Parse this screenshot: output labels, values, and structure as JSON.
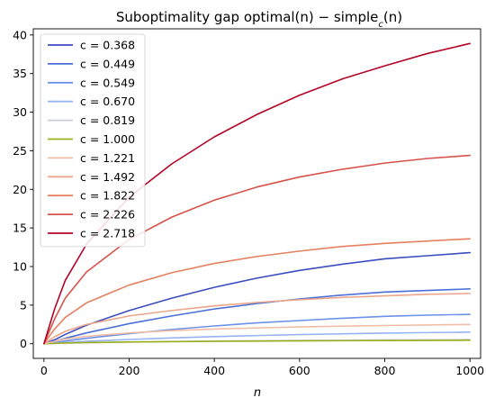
{
  "chart_data": {
    "type": "line",
    "title": "Suboptimality gap optimal(n) − simple_c(n)",
    "xlabel": "n",
    "ylabel": "",
    "xlim": [
      -25,
      1025
    ],
    "ylim": [
      -1.9,
      40.8
    ],
    "xticks": [
      0,
      200,
      400,
      600,
      800,
      1000
    ],
    "yticks": [
      0,
      5,
      10,
      15,
      20,
      25,
      30,
      35,
      40
    ],
    "x": [
      0,
      25,
      50,
      100,
      200,
      300,
      400,
      500,
      600,
      700,
      800,
      900,
      1000
    ],
    "grid": false,
    "legend_position": "top-left",
    "series": [
      {
        "name": "c = 0.368",
        "color": "#3b4cc0",
        "values": [
          0,
          0.5,
          1.2,
          2.4,
          4.3,
          5.9,
          7.3,
          8.5,
          9.5,
          10.3,
          11.0,
          11.4,
          11.8
        ]
      },
      {
        "name": "c = 0.449",
        "color": "#4a6fd8",
        "values": [
          0,
          0.3,
          0.7,
          1.4,
          2.6,
          3.6,
          4.5,
          5.2,
          5.8,
          6.3,
          6.7,
          6.9,
          7.1
        ]
      },
      {
        "name": "c = 0.549",
        "color": "#6b91e8",
        "values": [
          0,
          0.15,
          0.35,
          0.7,
          1.3,
          1.85,
          2.3,
          2.7,
          3.0,
          3.3,
          3.55,
          3.7,
          3.8
        ]
      },
      {
        "name": "c = 0.670",
        "color": "#96b3f3",
        "values": [
          0,
          0.07,
          0.17,
          0.32,
          0.55,
          0.75,
          0.92,
          1.06,
          1.18,
          1.28,
          1.37,
          1.44,
          1.5
        ]
      },
      {
        "name": "c = 0.819",
        "color": "#c9cfdc",
        "values": [
          0,
          0.03,
          0.07,
          0.13,
          0.22,
          0.29,
          0.35,
          0.4,
          0.44,
          0.47,
          0.5,
          0.52,
          0.54
        ]
      },
      {
        "name": "c = 1.000",
        "color": "#9ab01e",
        "values": [
          0,
          0.04,
          0.09,
          0.15,
          0.22,
          0.27,
          0.31,
          0.34,
          0.37,
          0.39,
          0.41,
          0.43,
          0.45
        ]
      },
      {
        "name": "c = 1.221",
        "color": "#f0bea6",
        "values": [
          0,
          0.3,
          0.6,
          0.95,
          1.4,
          1.7,
          1.9,
          2.05,
          2.18,
          2.28,
          2.36,
          2.43,
          2.5
        ]
      },
      {
        "name": "c = 1.492",
        "color": "#eba58a",
        "values": [
          0,
          0.9,
          1.6,
          2.5,
          3.6,
          4.3,
          4.9,
          5.35,
          5.7,
          6.0,
          6.2,
          6.4,
          6.5
        ]
      },
      {
        "name": "c = 1.822",
        "color": "#e58060",
        "values": [
          0,
          1.9,
          3.4,
          5.3,
          7.6,
          9.2,
          10.4,
          11.3,
          12.0,
          12.6,
          13.0,
          13.3,
          13.6
        ]
      },
      {
        "name": "c = 2.226",
        "color": "#d6524a",
        "values": [
          0,
          3.2,
          5.9,
          9.3,
          13.5,
          16.4,
          18.6,
          20.3,
          21.6,
          22.6,
          23.4,
          24.0,
          24.4
        ]
      },
      {
        "name": "c = 2.718",
        "color": "#b40426",
        "values": [
          0,
          4.5,
          8.2,
          12.9,
          19.0,
          23.3,
          26.8,
          29.7,
          32.2,
          34.3,
          36.0,
          37.6,
          38.9
        ]
      }
    ]
  }
}
